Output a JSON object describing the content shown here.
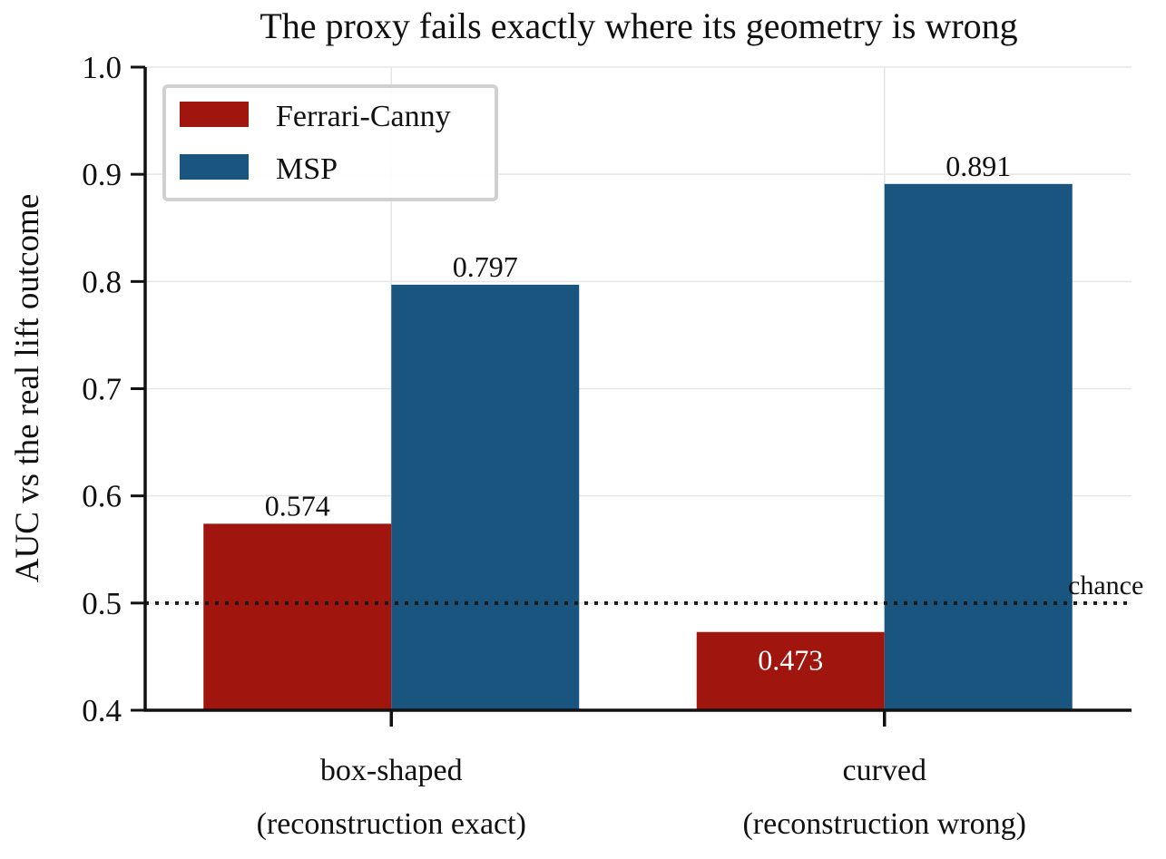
{
  "chart_data": {
    "type": "bar",
    "title": "The proxy fails exactly where its geometry is wrong",
    "ylabel": "AUC vs the real lift outcome",
    "xlabel": "",
    "ylim": [
      0.4,
      1.0
    ],
    "yticks": [
      0.4,
      0.5,
      0.6,
      0.7,
      0.8,
      0.9,
      1.0
    ],
    "ytick_labels": [
      "0.4",
      "0.5",
      "0.6",
      "0.7",
      "0.8",
      "0.9",
      "1.0"
    ],
    "grid": true,
    "legend_position": "top-left",
    "categories": [
      [
        "box-shaped",
        "(reconstruction exact)"
      ],
      [
        "curved",
        "(reconstruction wrong)"
      ]
    ],
    "series": [
      {
        "name": "Ferrari-Canny",
        "color": "#a0160f",
        "values": [
          0.574,
          0.473
        ],
        "labels": [
          "0.574",
          "0.473"
        ]
      },
      {
        "name": "MSP",
        "color": "#19557f",
        "values": [
          0.797,
          0.891
        ],
        "labels": [
          "0.797",
          "0.891"
        ]
      }
    ],
    "reference_line": {
      "value": 0.5,
      "label": "chance",
      "style": "dotted"
    }
  }
}
